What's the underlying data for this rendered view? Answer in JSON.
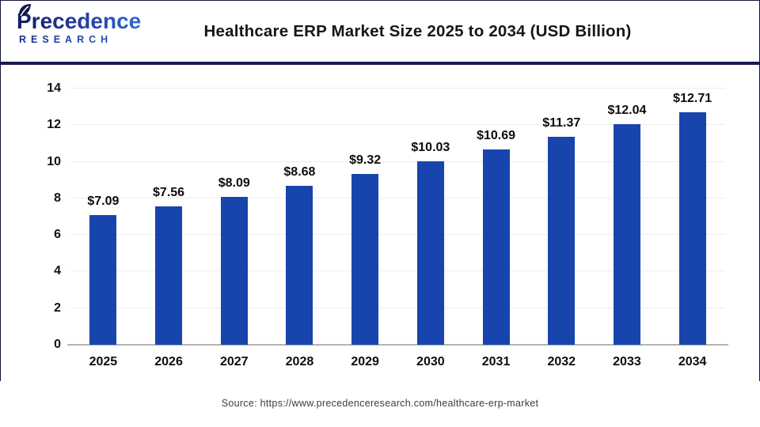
{
  "header": {
    "logo": {
      "line1": "Precedence",
      "line2": "RESEARCH",
      "leaf_icon": "leaf-icon",
      "color_dark": "#141b5e",
      "color_light": "#3f82e0"
    },
    "title": "Healthcare ERP Market Size 2025 to 2034 (USD Billion)"
  },
  "chart_data": {
    "type": "bar",
    "title": "Healthcare ERP Market Size 2025 to 2034 (USD Billion)",
    "categories": [
      "2025",
      "2026",
      "2027",
      "2028",
      "2029",
      "2030",
      "2031",
      "2032",
      "2033",
      "2034"
    ],
    "values": [
      7.09,
      7.56,
      8.09,
      8.68,
      9.32,
      10.03,
      10.69,
      11.37,
      12.04,
      12.71
    ],
    "value_labels": [
      "$7.09",
      "$7.56",
      "$8.09",
      "$8.68",
      "$9.32",
      "$10.03",
      "$10.69",
      "$11.37",
      "$12.04",
      "$12.71"
    ],
    "xlabel": "",
    "ylabel": "",
    "ylim": [
      0,
      14
    ],
    "yticks": [
      0,
      2,
      4,
      6,
      8,
      10,
      12,
      14
    ],
    "grid": "horizontal",
    "legend": "none",
    "bar_color": "#1745ad",
    "gridline_color": "#ededed",
    "axis_line_color": "#b3b3b3"
  },
  "footer": {
    "source": "Source: https://www.precedenceresearch.com/healthcare-erp-market"
  }
}
